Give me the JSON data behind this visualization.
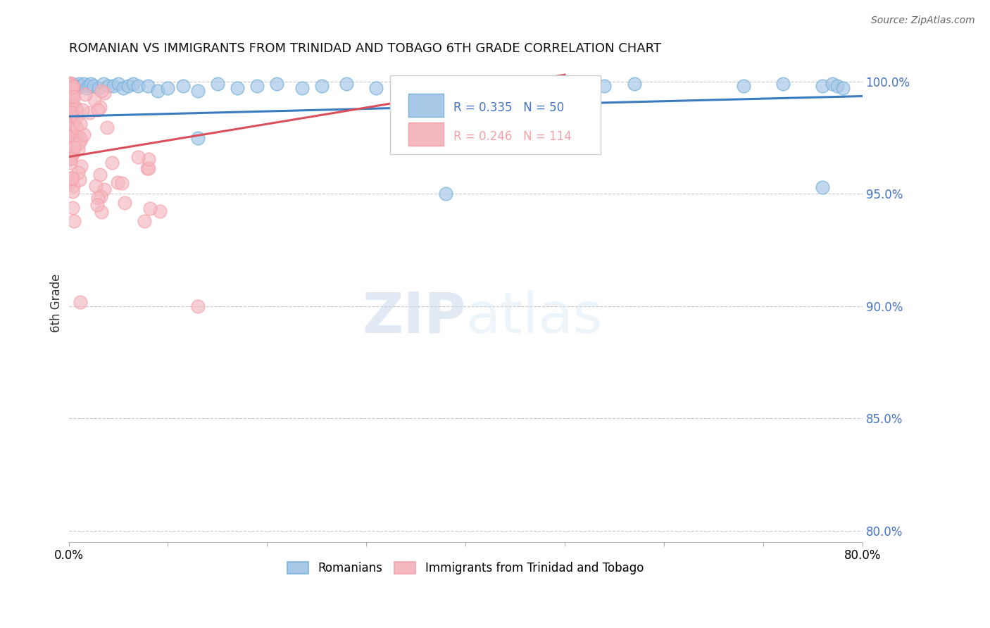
{
  "title": "ROMANIAN VS IMMIGRANTS FROM TRINIDAD AND TOBAGO 6TH GRADE CORRELATION CHART",
  "source": "Source: ZipAtlas.com",
  "ylabel": "6th Grade",
  "xlim": [
    0.0,
    0.8
  ],
  "ylim": [
    0.795,
    1.008
  ],
  "yticks": [
    0.8,
    0.85,
    0.9,
    0.95,
    1.0
  ],
  "ytick_labels": [
    "80.0%",
    "85.0%",
    "90.0%",
    "95.0%",
    "100.0%"
  ],
  "xticks": [
    0.0,
    0.1,
    0.2,
    0.3,
    0.4,
    0.5,
    0.6,
    0.7,
    0.8
  ],
  "xtick_labels": [
    "0.0%",
    "",
    "",
    "",
    "",
    "",
    "",
    "",
    "80.0%"
  ],
  "blue_color": "#7ab3d9",
  "pink_color": "#f4a0a8",
  "blue_fill_color": "#a8c8e8",
  "pink_fill_color": "#f4b8c0",
  "blue_line_color": "#3a7abf",
  "pink_line_color": "#d94f5c",
  "legend_label_romanians": "Romanians",
  "legend_label_trinidad": "Immigrants from Trinidad and Tobago",
  "blue_R": 0.335,
  "blue_N": 50,
  "pink_R": 0.246,
  "pink_N": 114,
  "title_color": "#333333",
  "axis_tick_color": "#4472c4",
  "grid_color": "#c8c8c8",
  "watermark_color": "#cddff0",
  "source_color": "#666666"
}
